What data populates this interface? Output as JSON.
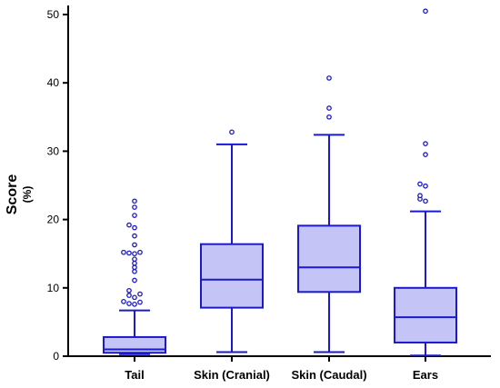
{
  "chart_data": {
    "type": "box",
    "ylabel": "Score",
    "yunit": "(%)",
    "ylim": [
      0,
      51
    ],
    "yticks": [
      0,
      10,
      20,
      30,
      40,
      50
    ],
    "grid": false,
    "colors": {
      "stroke": "#1a1acc",
      "fill": "#c4c4f7"
    },
    "categories": [
      "Tail",
      "Skin (Cranial)",
      "Skin (Caudal)",
      "Ears"
    ],
    "boxes": [
      {
        "name": "Tail",
        "whisker_low": 0.3,
        "q1": 0.5,
        "median": 1.0,
        "q3": 2.8,
        "whisker_high": 6.7,
        "outliers": [
          7.6,
          7.7,
          7.9,
          8.0,
          8.6,
          8.9,
          9.1,
          9.6,
          11.1,
          12.4,
          13.0,
          13.6,
          14.2,
          15.0,
          15.1,
          15.2,
          15.2,
          16.3,
          17.6,
          18.8,
          19.2,
          20.6,
          21.8,
          22.7
        ]
      },
      {
        "name": "Skin (Cranial)",
        "whisker_low": 0.6,
        "q1": 7.1,
        "median": 11.2,
        "q3": 16.4,
        "whisker_high": 31.0,
        "outliers": [
          32.8
        ]
      },
      {
        "name": "Skin (Caudal)",
        "whisker_low": 0.6,
        "q1": 9.4,
        "median": 13.0,
        "q3": 19.1,
        "whisker_high": 32.4,
        "outliers": [
          35.0,
          36.3,
          40.7
        ]
      },
      {
        "name": "Ears",
        "whisker_low": 0.1,
        "q1": 2.0,
        "median": 5.7,
        "q3": 10.0,
        "whisker_high": 21.2,
        "outliers": [
          22.7,
          23.0,
          23.5,
          24.9,
          25.2,
          29.5,
          31.1,
          50.5
        ]
      }
    ]
  }
}
